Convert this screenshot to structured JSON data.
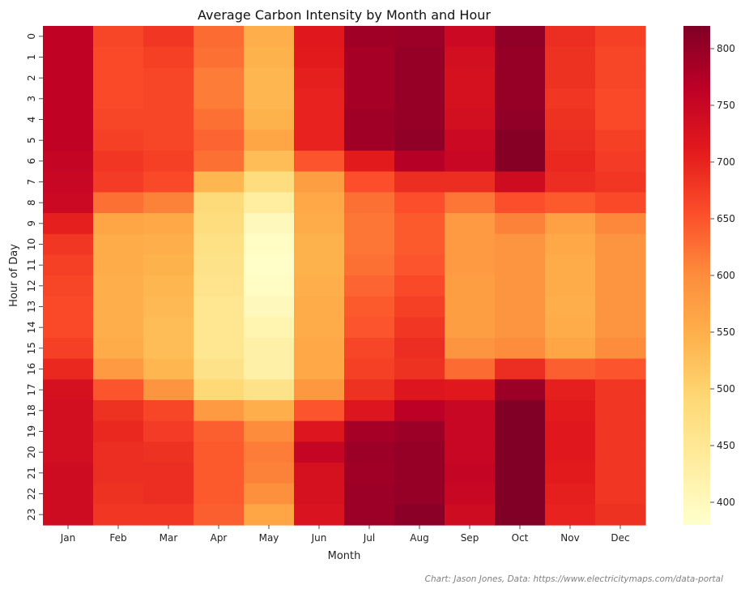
{
  "chart_data": {
    "type": "heatmap",
    "title": "Average Carbon Intensity by Month and Hour",
    "xlabel": "Month",
    "ylabel": "Hour of Day",
    "x_categories": [
      "Jan",
      "Feb",
      "Mar",
      "Apr",
      "May",
      "Jun",
      "Jul",
      "Aug",
      "Sep",
      "Oct",
      "Nov",
      "Dec"
    ],
    "y_categories": [
      "0",
      "1",
      "2",
      "3",
      "4",
      "5",
      "6",
      "7",
      "8",
      "9",
      "10",
      "11",
      "12",
      "13",
      "14",
      "15",
      "16",
      "17",
      "18",
      "19",
      "20",
      "21",
      "22",
      "23"
    ],
    "values": [
      [
        760,
        665,
        680,
        630,
        550,
        715,
        790,
        795,
        745,
        805,
        690,
        670
      ],
      [
        760,
        660,
        670,
        625,
        545,
        710,
        785,
        800,
        735,
        800,
        685,
        665
      ],
      [
        760,
        660,
        665,
        615,
        540,
        705,
        785,
        800,
        730,
        800,
        685,
        665
      ],
      [
        760,
        660,
        665,
        615,
        540,
        700,
        785,
        800,
        730,
        800,
        680,
        660
      ],
      [
        760,
        665,
        665,
        625,
        545,
        700,
        790,
        800,
        735,
        805,
        685,
        660
      ],
      [
        760,
        670,
        665,
        635,
        565,
        700,
        790,
        805,
        745,
        815,
        690,
        670
      ],
      [
        755,
        680,
        670,
        625,
        530,
        650,
        710,
        770,
        750,
        815,
        695,
        675
      ],
      [
        750,
        675,
        660,
        540,
        480,
        575,
        655,
        690,
        690,
        740,
        690,
        680
      ],
      [
        745,
        625,
        610,
        485,
        435,
        560,
        625,
        655,
        620,
        655,
        645,
        660
      ],
      [
        705,
        565,
        560,
        480,
        400,
        555,
        620,
        645,
        580,
        610,
        570,
        605
      ],
      [
        680,
        555,
        550,
        470,
        390,
        545,
        620,
        645,
        580,
        590,
        560,
        590
      ],
      [
        670,
        555,
        545,
        465,
        385,
        545,
        625,
        650,
        580,
        590,
        555,
        590
      ],
      [
        665,
        550,
        540,
        460,
        390,
        550,
        635,
        660,
        575,
        590,
        555,
        590
      ],
      [
        660,
        550,
        535,
        455,
        400,
        555,
        645,
        670,
        575,
        590,
        550,
        590
      ],
      [
        660,
        550,
        530,
        455,
        415,
        555,
        650,
        680,
        575,
        590,
        555,
        590
      ],
      [
        670,
        555,
        530,
        455,
        425,
        560,
        665,
        690,
        590,
        600,
        565,
        600
      ],
      [
        695,
        580,
        540,
        465,
        425,
        560,
        670,
        685,
        630,
        690,
        640,
        650
      ],
      [
        730,
        650,
        590,
        490,
        465,
        585,
        685,
        720,
        715,
        795,
        705,
        680
      ],
      [
        735,
        685,
        665,
        580,
        550,
        650,
        720,
        765,
        750,
        825,
        710,
        680
      ],
      [
        735,
        695,
        675,
        640,
        600,
        720,
        785,
        795,
        750,
        825,
        715,
        680
      ],
      [
        735,
        690,
        685,
        645,
        615,
        755,
        795,
        800,
        750,
        825,
        715,
        680
      ],
      [
        740,
        690,
        690,
        645,
        610,
        730,
        790,
        800,
        755,
        825,
        710,
        680
      ],
      [
        740,
        685,
        690,
        645,
        595,
        730,
        795,
        800,
        750,
        825,
        705,
        680
      ],
      [
        740,
        680,
        680,
        640,
        565,
        725,
        795,
        810,
        740,
        820,
        700,
        685
      ]
    ],
    "vmin": 380,
    "vmax": 820,
    "colorbar_ticks": [
      400,
      450,
      500,
      550,
      600,
      650,
      700,
      750,
      800
    ],
    "colormap": "YlOrRd",
    "colormap_stops": [
      "#ffffcc",
      "#ffeda0",
      "#fed976",
      "#feb24c",
      "#fd8d3c",
      "#fc4e2a",
      "#e31a1c",
      "#bd0026",
      "#800026"
    ],
    "grid": false,
    "legend": "colorbar-right"
  },
  "caption": "Chart: Jason Jones, Data: https://www.electricitymaps.com/data-portal"
}
